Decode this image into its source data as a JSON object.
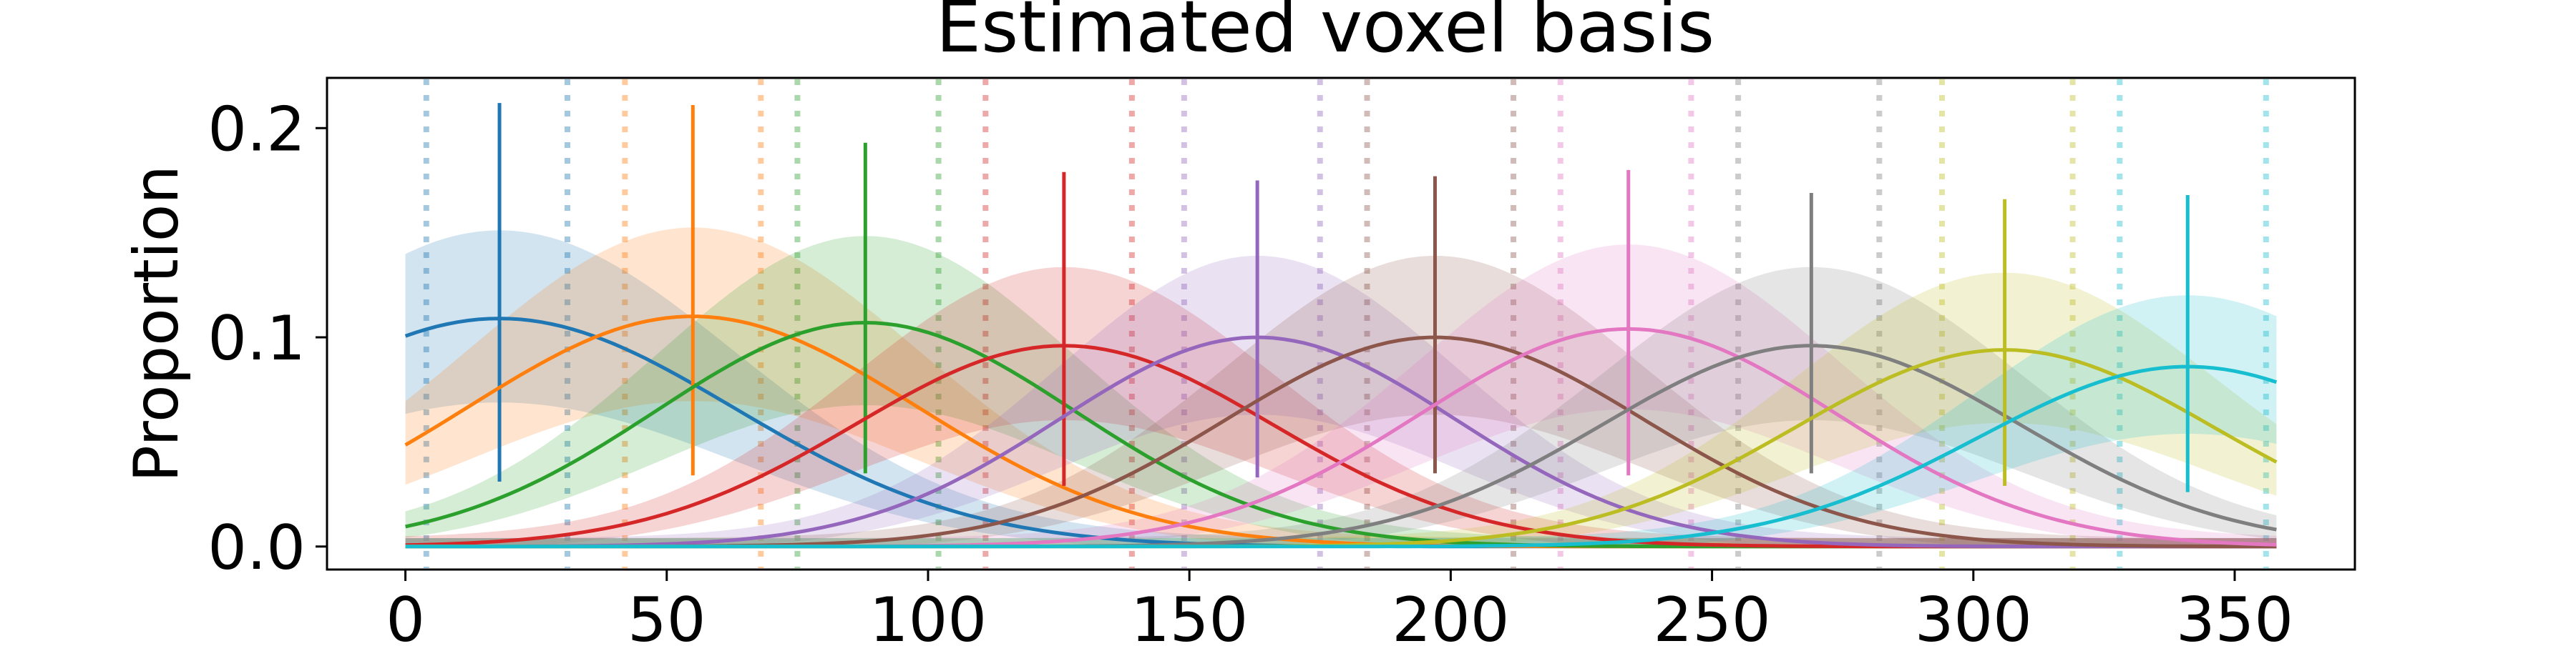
{
  "chart_data": {
    "type": "line",
    "title": "Estimated voxel basis",
    "xlabel": "",
    "ylabel": "Proportion",
    "xlim": [
      -15,
      373
    ],
    "ylim": [
      -0.011,
      0.224
    ],
    "xticks": [
      0,
      50,
      100,
      150,
      200,
      250,
      300,
      350
    ],
    "yticks": [
      0.0,
      0.1,
      0.2
    ],
    "ytick_labels": [
      "0.0",
      "0.1",
      "0.2"
    ],
    "grid": false,
    "legend": "none",
    "x_domain": [
      0,
      358
    ],
    "colors": [
      "#1f77b4",
      "#ff7f0e",
      "#2ca02c",
      "#d62728",
      "#9467bd",
      "#8c564b",
      "#e377c2",
      "#7f7f7f",
      "#bcbd22",
      "#17becf"
    ],
    "series": [
      {
        "center": 18,
        "peak": 0.109,
        "width": 45,
        "vline": [
          0.031,
          0.212
        ],
        "bounds": [
          4,
          31
        ]
      },
      {
        "center": 55,
        "peak": 0.11,
        "width": 43,
        "vline": [
          0.034,
          0.211
        ],
        "bounds": [
          42,
          68
        ]
      },
      {
        "center": 88,
        "peak": 0.107,
        "width": 40,
        "vline": [
          0.035,
          0.193
        ],
        "bounds": [
          75,
          102
        ]
      },
      {
        "center": 126,
        "peak": 0.096,
        "width": 40,
        "vline": [
          0.029,
          0.179
        ],
        "bounds": [
          111,
          139
        ]
      },
      {
        "center": 163,
        "peak": 0.1,
        "width": 38,
        "vline": [
          0.033,
          0.175
        ],
        "bounds": [
          149,
          175
        ]
      },
      {
        "center": 197,
        "peak": 0.1,
        "width": 40,
        "vline": [
          0.035,
          0.177
        ],
        "bounds": [
          184,
          212
        ]
      },
      {
        "center": 234,
        "peak": 0.104,
        "width": 40,
        "vline": [
          0.034,
          0.18
        ],
        "bounds": [
          221,
          246
        ]
      },
      {
        "center": 269,
        "peak": 0.096,
        "width": 40,
        "vline": [
          0.035,
          0.169
        ],
        "bounds": [
          255,
          282
        ]
      },
      {
        "center": 306,
        "peak": 0.094,
        "width": 40,
        "vline": [
          0.029,
          0.166
        ],
        "bounds": [
          294,
          319
        ]
      },
      {
        "center": 341,
        "peak": 0.086,
        "width": 40,
        "vline": [
          0.026,
          0.168
        ],
        "bounds": [
          328,
          356
        ]
      }
    ]
  }
}
